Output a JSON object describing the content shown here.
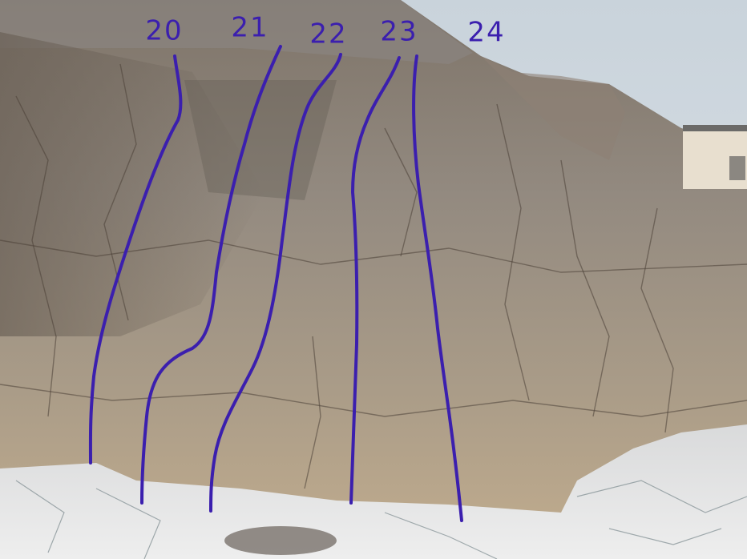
{
  "route_labels": [
    "20",
    "21",
    "22",
    "23",
    "24"
  ]
}
